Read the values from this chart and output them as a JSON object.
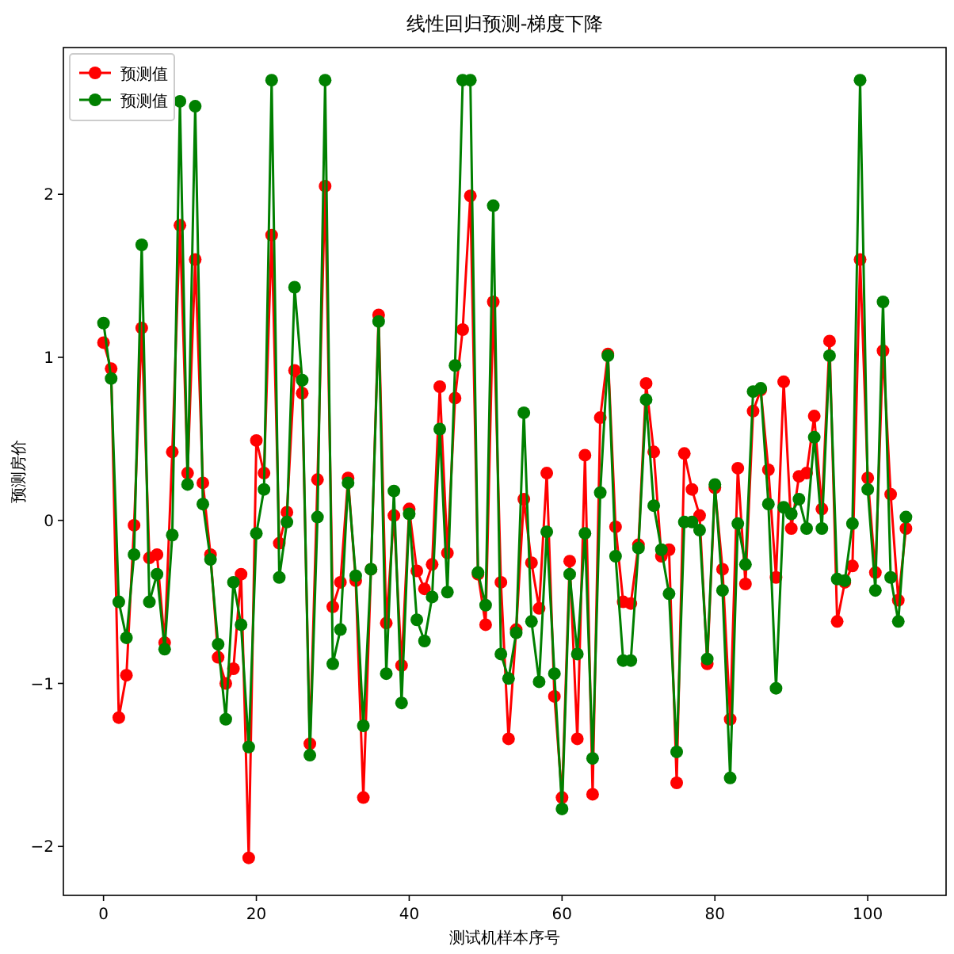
{
  "chart_data": {
    "type": "line",
    "title": "线性回归预测-梯度下降",
    "xlabel": "测试机样本序号",
    "ylabel": "预测房价",
    "x": [
      0,
      1,
      2,
      3,
      4,
      5,
      6,
      7,
      8,
      9,
      10,
      11,
      12,
      13,
      14,
      15,
      16,
      17,
      18,
      19,
      20,
      21,
      22,
      23,
      24,
      25,
      26,
      27,
      28,
      29,
      30,
      31,
      32,
      33,
      34,
      35,
      36,
      37,
      38,
      39,
      40,
      41,
      42,
      43,
      44,
      45,
      46,
      47,
      48,
      49,
      50,
      51,
      52,
      53,
      54,
      55,
      56,
      57,
      58,
      59,
      60,
      61,
      62,
      63,
      64,
      65,
      66,
      67,
      68,
      69,
      70,
      71,
      72,
      73,
      74,
      75,
      76,
      77,
      78,
      79,
      80,
      81,
      82,
      83,
      84,
      85,
      86,
      87,
      88,
      89,
      90,
      91,
      92,
      93,
      94,
      95,
      96,
      97,
      98,
      99,
      100,
      101,
      102,
      103,
      104,
      105
    ],
    "series": [
      {
        "name": "预测值",
        "color": "#ff0000",
        "values": [
          1.09,
          0.93,
          -1.21,
          -0.95,
          -0.03,
          1.18,
          -0.23,
          -0.21,
          -0.75,
          0.42,
          1.81,
          0.29,
          1.6,
          0.23,
          -0.21,
          -0.84,
          -1.0,
          -0.91,
          -0.33,
          -2.07,
          0.49,
          0.29,
          1.75,
          -0.14,
          0.05,
          0.92,
          0.78,
          -1.37,
          0.25,
          2.05,
          -0.53,
          -0.38,
          0.26,
          -0.37,
          -1.7,
          -0.3,
          1.26,
          -0.63,
          0.03,
          -0.89,
          0.07,
          -0.31,
          -0.42,
          -0.27,
          0.82,
          -0.2,
          0.75,
          1.17,
          1.99,
          -0.33,
          -0.64,
          1.34,
          -0.38,
          -1.34,
          -0.67,
          0.13,
          -0.26,
          -0.54,
          0.29,
          -1.08,
          -1.7,
          -0.25,
          -1.34,
          0.4,
          -1.68,
          0.63,
          1.02,
          -0.04,
          -0.5,
          -0.51,
          -0.15,
          0.84,
          0.42,
          -0.22,
          -0.18,
          -1.61,
          0.41,
          0.19,
          0.03,
          -0.88,
          0.2,
          -0.3,
          -1.22,
          0.32,
          -0.39,
          0.67,
          0.8,
          0.31,
          -0.35,
          0.85,
          -0.05,
          0.27,
          0.29,
          0.64,
          0.07,
          1.1,
          -0.62,
          -0.38,
          -0.28,
          1.6,
          0.26,
          -0.32,
          1.04,
          0.16,
          -0.49,
          -0.05
        ]
      },
      {
        "name": "预测值",
        "color": "#008000",
        "values": [
          1.21,
          0.87,
          -0.5,
          -0.72,
          -0.21,
          1.69,
          -0.5,
          -0.33,
          -0.79,
          -0.09,
          2.57,
          0.22,
          2.54,
          0.1,
          -0.24,
          -0.76,
          -1.22,
          -0.38,
          -0.64,
          -1.39,
          -0.08,
          0.19,
          2.7,
          -0.35,
          -0.01,
          1.43,
          0.86,
          -1.44,
          0.02,
          2.7,
          -0.88,
          -0.67,
          0.23,
          -0.34,
          -1.26,
          -0.3,
          1.22,
          -0.94,
          0.18,
          -1.12,
          0.04,
          -0.61,
          -0.74,
          -0.47,
          0.56,
          -0.44,
          0.95,
          2.7,
          2.7,
          -0.32,
          -0.52,
          1.93,
          -0.82,
          -0.97,
          -0.69,
          0.66,
          -0.62,
          -0.99,
          -0.07,
          -0.94,
          -1.77,
          -0.33,
          -0.82,
          -0.08,
          -1.46,
          0.17,
          1.01,
          -0.22,
          -0.86,
          -0.86,
          -0.17,
          0.74,
          0.09,
          -0.18,
          -0.45,
          -1.42,
          -0.01,
          -0.01,
          -0.06,
          -0.85,
          0.22,
          -0.43,
          -1.58,
          -0.02,
          -0.27,
          0.79,
          0.81,
          0.1,
          -1.03,
          0.08,
          0.04,
          0.13,
          -0.05,
          0.51,
          -0.05,
          1.01,
          -0.36,
          -0.37,
          -0.02,
          2.7,
          0.19,
          -0.43,
          1.34,
          -0.35,
          -0.62,
          0.02
        ]
      }
    ],
    "xlim": [
      -5.25,
      110.25
    ],
    "ylim": [
      -2.3,
      2.9
    ],
    "xticks": [
      0,
      20,
      40,
      60,
      80,
      100
    ],
    "yticks": [
      {
        "value": -2,
        "label": "−2"
      },
      {
        "value": -1,
        "label": "−1"
      },
      0,
      1,
      2
    ],
    "legend": "top left",
    "marker": "circle"
  }
}
